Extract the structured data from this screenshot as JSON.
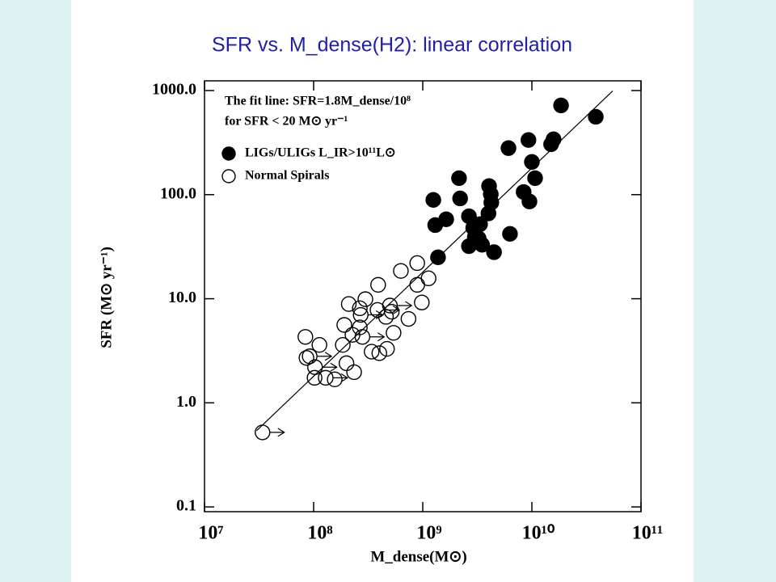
{
  "chart_data": {
    "type": "scatter",
    "title": "SFR vs. M_dense(H2): linear correlation",
    "xlabel": "M_dense(M⊙)",
    "ylabel": "SFR (M⊙ yr⁻¹)",
    "annotations": [
      "The fit line: SFR=1.8M_dense/10⁸",
      "for SFR < 20 M⊙ yr⁻¹"
    ],
    "log_x": true,
    "log_y": true,
    "xlim": [
      10000000,
      100000000000
    ],
    "ylim": [
      0.09,
      1240
    ],
    "xticks": [
      {
        "value": 10000000,
        "label": "10⁷"
      },
      {
        "value": 100000000,
        "label": "10⁸"
      },
      {
        "value": 1000000000,
        "label": "10⁹"
      },
      {
        "value": 10000000000,
        "label": "10¹⁰"
      },
      {
        "value": 100000000000,
        "label": "10¹¹"
      }
    ],
    "yticks": [
      0.1,
      {
        "value": 1,
        "label": "1.0"
      },
      {
        "value": 10,
        "label": "10.0"
      },
      {
        "value": 100,
        "label": "100.0"
      },
      {
        "value": 1000,
        "label": "1000.0"
      }
    ],
    "legend": "upper left",
    "fit_line": {
      "color": "#000000",
      "x": [
        30000000,
        55000000000
      ],
      "values": [
        0.54,
        990
      ]
    },
    "series": [
      {
        "name": "LIGs/ULIGs L_IR>10¹¹L⊙",
        "color": "#000000",
        "filled": true,
        "x": [
          18500000000,
          38500000000,
          15800000000,
          15000000000,
          9300000000,
          10000000000,
          6100000000,
          10700000000,
          8400000000,
          9500000000,
          2150000000,
          2200000000,
          1250000000,
          4050000000,
          4200000000,
          4250000000,
          4000000000,
          1640000000,
          2650000000,
          3350000000,
          2900000000,
          6300000000,
          3250000000,
          3000000000,
          2650000000,
          3500000000,
          4500000000,
          1380000000,
          1300000000
        ],
        "values": [
          720,
          560,
          340,
          305,
          335,
          206,
          280,
          144,
          106,
          86,
          144,
          92,
          89,
          121,
          101,
          84,
          66,
          58,
          62,
          52,
          48,
          42,
          38,
          39,
          32,
          33,
          28,
          25,
          51
        ]
      },
      {
        "name": "Normal Spirals",
        "color": "#000000",
        "filled": false,
        "x": [
          34000000,
          84000000,
          92000000,
          103000000,
          102000000,
          129000000,
          156000000,
          86000000,
          113000000,
          185000000,
          191000000,
          210000000,
          200000000,
          235000000,
          227000000,
          270000000,
          265000000,
          298000000,
          280000000,
          265000000,
          390000000,
          340000000,
          400000000,
          470000000,
          500000000,
          460000000,
          540000000,
          520000000,
          630000000,
          740000000,
          890000000,
          890000000,
          980000000,
          1130000000,
          385000000
        ],
        "values": [
          0.52,
          4.3,
          2.8,
          2.2,
          1.74,
          1.74,
          1.68,
          2.7,
          3.6,
          3.6,
          5.6,
          8.9,
          2.4,
          1.97,
          4.5,
          7.0,
          8.1,
          9.9,
          4.3,
          5.3,
          13.6,
          3.1,
          3.0,
          3.3,
          8.6,
          6.7,
          4.7,
          7.5,
          18.5,
          6.4,
          22,
          13.6,
          9.2,
          15.7,
          7.8
        ],
        "x_lower_limit": [
          true,
          false,
          true,
          true,
          false,
          true,
          false,
          false,
          false,
          false,
          false,
          false,
          false,
          false,
          false,
          true,
          false,
          false,
          true,
          false,
          false,
          false,
          false,
          false,
          true,
          false,
          false,
          false,
          false,
          false,
          false,
          false,
          false,
          false,
          true
        ]
      }
    ]
  }
}
